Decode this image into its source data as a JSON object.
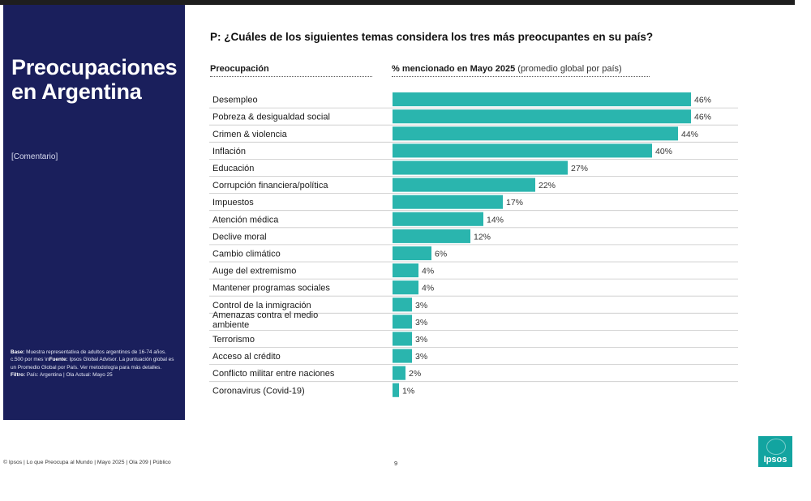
{
  "sidebar": {
    "title_line1": "Preocupaciones",
    "title_line2": "en Argentina",
    "comment": "[Comentario]",
    "notes": {
      "base_label": "Base:",
      "base_text": " Muestra representativa de adultos argentinos de 16-74 años. c.500 por mes \\n",
      "source_label": "Fuente:",
      "source_text": " Ipsos Global Advisor. La puntuación global es un Promedio Global por País. Ver metodología para más detalles. ",
      "filter_label": "Filtro:",
      "filter_text": " País: Argentina | Ola Actual: Mayo 25"
    }
  },
  "header": {
    "question": "P: ¿Cuáles de los siguientes temas considera los tres más preocupantes en su país?",
    "col_left": "Preocupación",
    "col_right_bold": "% mencionado en Mayo 2025",
    "col_right_light": " (promedio global por país)"
  },
  "footer": {
    "text": "© Ipsos | Lo que Preocupa al Mundo | Mayo 2025 | Ola 209 | Público",
    "page": "9"
  },
  "logo": {
    "text": "Ipsos"
  },
  "colors": {
    "bar": "#2ab5ae",
    "sidebar": "#1a1f5c",
    "logo": "#12a4a0"
  },
  "chart_data": {
    "type": "bar",
    "orientation": "horizontal",
    "title": "P: ¿Cuáles de los siguientes temas considera los tres más preocupantes en su país?",
    "xlabel": "% mencionado en Mayo 2025 (promedio global por país)",
    "ylabel": "Preocupación",
    "xlim": [
      0,
      50
    ],
    "categories": [
      "Desempleo",
      "Pobreza & desigualdad social",
      "Crimen & violencia",
      "Inflación",
      "Educación",
      "Corrupción financiera/política",
      "Impuestos",
      "Atención médica",
      "Declive moral",
      "Cambio climático",
      "Auge del extremismo",
      "Mantener programas sociales",
      "Control de la inmigración",
      "Amenazas contra el medio ambiente",
      "Terrorismo",
      "Acceso al crédito",
      "Conflicto militar entre naciones",
      "Coronavirus (Covid-19)"
    ],
    "values": [
      46,
      46,
      44,
      40,
      27,
      22,
      17,
      14,
      12,
      6,
      4,
      4,
      3,
      3,
      3,
      3,
      2,
      1
    ],
    "value_labels": [
      "46%",
      "46%",
      "44%",
      "40%",
      "27%",
      "22%",
      "17%",
      "14%",
      "12%",
      "6%",
      "4%",
      "4%",
      "3%",
      "3%",
      "3%",
      "3%",
      "2%",
      "1%"
    ],
    "category_lines": [
      [
        "Desempleo"
      ],
      [
        "Pobreza & desigualdad social"
      ],
      [
        "Crimen & violencia"
      ],
      [
        "Inflación"
      ],
      [
        "Educación"
      ],
      [
        "Corrupción financiera/política"
      ],
      [
        "Impuestos"
      ],
      [
        "Atención médica"
      ],
      [
        "Declive moral"
      ],
      [
        "Cambio climático"
      ],
      [
        "Auge del extremismo"
      ],
      [
        "Mantener programas sociales"
      ],
      [
        "Control de la inmigración"
      ],
      [
        "Amenazas contra el medio",
        "ambiente"
      ],
      [
        "Terrorismo"
      ],
      [
        "Acceso al crédito"
      ],
      [
        "Conflicto militar entre naciones"
      ],
      [
        "Coronavirus (Covid-19)"
      ]
    ]
  }
}
